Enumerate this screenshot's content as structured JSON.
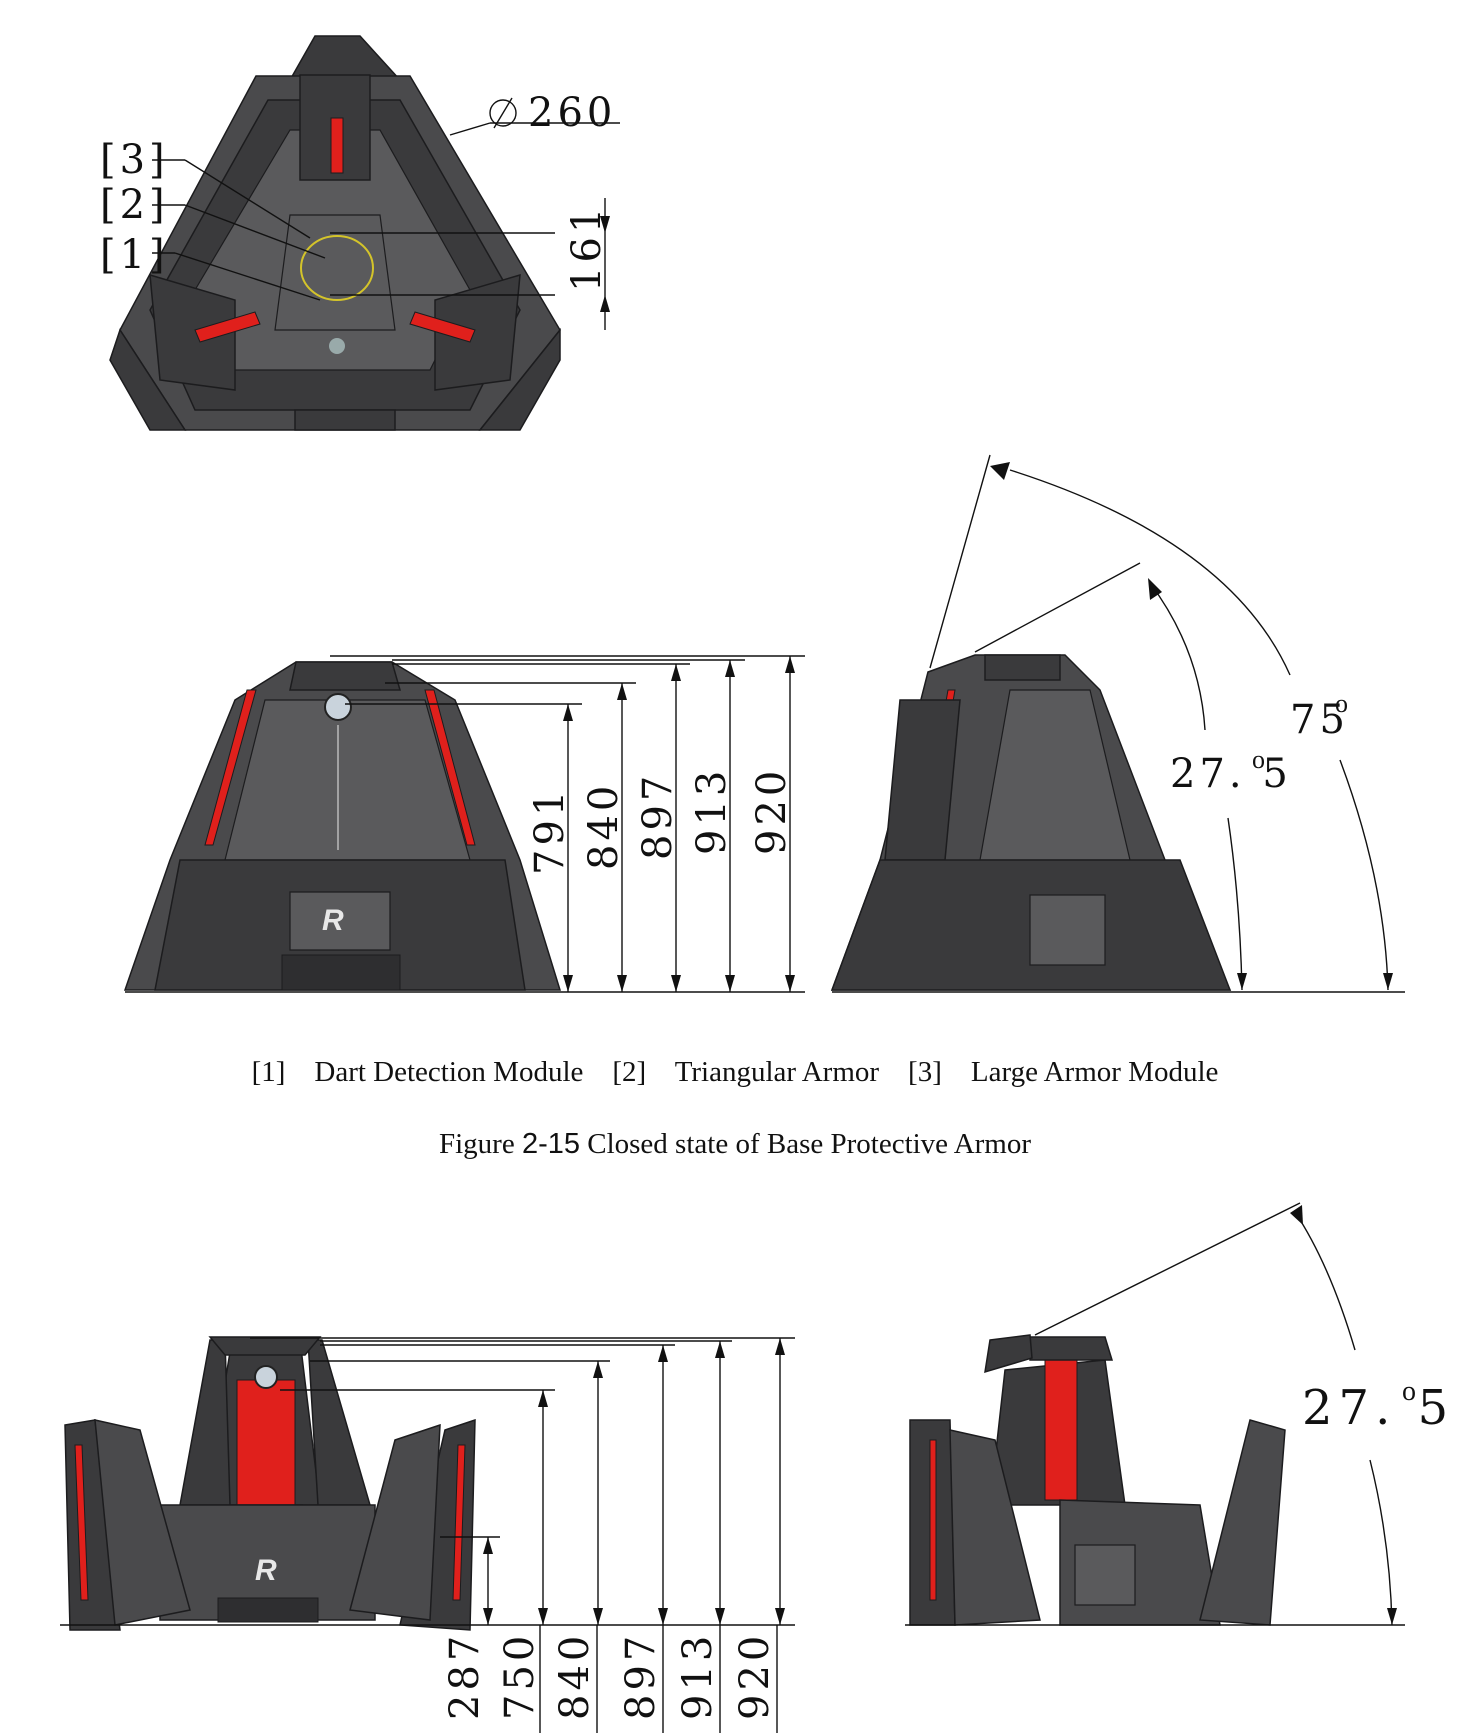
{
  "top_view": {
    "diameter_label": "260",
    "distance_label": "161",
    "callouts": [
      "[3]",
      "[2]",
      "[1]"
    ]
  },
  "closed_state": {
    "front_heights": [
      "791",
      "840",
      "897",
      "913",
      "920"
    ],
    "side_angles": [
      "27. 5",
      "75"
    ]
  },
  "legend": {
    "items": [
      {
        "id": "[1]",
        "label": "Dart Detection Module"
      },
      {
        "id": "[2]",
        "label": "Triangular Armor"
      },
      {
        "id": "[3]",
        "label": "Large Armor Module"
      }
    ]
  },
  "caption": {
    "prefix": "Figure ",
    "number": "2-15",
    "text": " Closed state of Base Protective Armor"
  },
  "open_state": {
    "front_heights": [
      "287",
      "750",
      "840",
      "897",
      "913",
      "920"
    ],
    "side_angle": "27. 5"
  }
}
